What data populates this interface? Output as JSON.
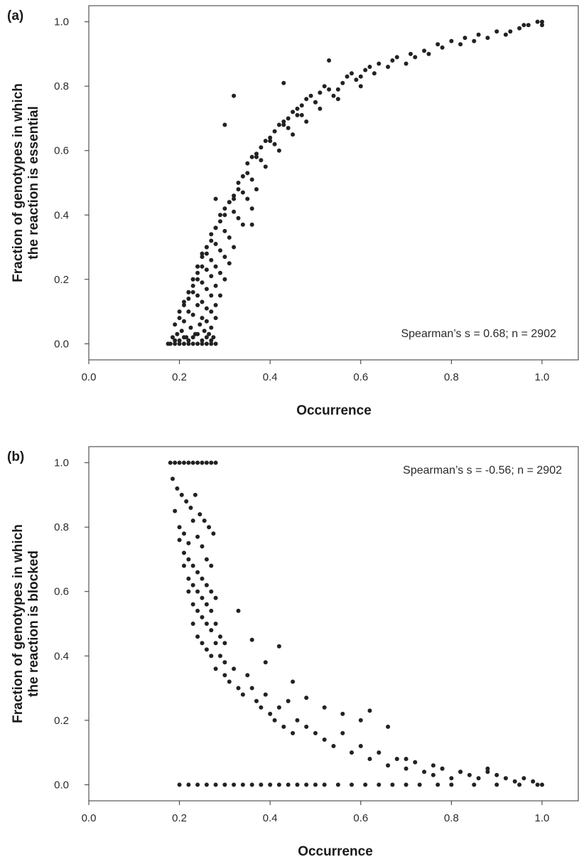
{
  "chart_data": [
    {
      "type": "scatter",
      "panel_label": "(a)",
      "xlabel": "Occurrence",
      "ylabel_lines": [
        "Fraction of genotypes in which",
        "the reaction is essential"
      ],
      "annotation": "Spearman’s s = 0.68; n = 2902",
      "annotation_position": "bottom-right",
      "xlim": [
        0.0,
        1.08
      ],
      "ylim": [
        -0.05,
        1.05
      ],
      "x_ticks": [
        "0.0",
        "0.2",
        "0.4",
        "0.6",
        "0.8",
        "1.0"
      ],
      "y_ticks": [
        "0.0",
        "0.2",
        "0.4",
        "0.6",
        "0.8",
        "1.0"
      ],
      "grid": false,
      "n": 2902,
      "trend": "increasing",
      "point_color": "#222222",
      "series": [
        {
          "x": [
            0.175,
            0.18,
            0.19,
            0.2,
            0.21,
            0.22,
            0.23,
            0.24,
            0.25,
            0.26,
            0.27,
            0.28,
            0.185,
            0.195,
            0.205,
            0.215,
            0.225,
            0.235,
            0.245,
            0.255,
            0.265,
            0.275,
            0.19,
            0.2,
            0.21,
            0.22,
            0.23,
            0.24,
            0.25,
            0.26,
            0.27,
            0.2,
            0.21,
            0.22,
            0.23,
            0.24,
            0.25,
            0.26,
            0.27,
            0.28,
            0.21,
            0.22,
            0.23,
            0.24,
            0.25,
            0.26,
            0.27,
            0.28,
            0.22,
            0.23,
            0.24,
            0.25,
            0.26,
            0.27,
            0.28,
            0.29,
            0.23,
            0.24,
            0.25,
            0.26,
            0.27,
            0.28,
            0.29,
            0.3,
            0.24,
            0.25,
            0.26,
            0.27,
            0.28,
            0.29,
            0.3,
            0.31,
            0.26,
            0.27,
            0.28,
            0.29,
            0.3,
            0.31,
            0.32,
            0.28,
            0.29,
            0.3,
            0.31,
            0.32,
            0.33,
            0.34,
            0.3,
            0.31,
            0.32,
            0.33,
            0.34,
            0.35,
            0.36,
            0.32,
            0.33,
            0.34,
            0.35,
            0.36,
            0.37,
            0.34,
            0.35,
            0.36,
            0.37,
            0.38,
            0.39,
            0.37,
            0.38,
            0.39,
            0.4,
            0.41,
            0.42,
            0.4,
            0.41,
            0.42,
            0.43,
            0.44,
            0.45,
            0.43,
            0.44,
            0.45,
            0.46,
            0.47,
            0.48,
            0.46,
            0.47,
            0.48,
            0.49,
            0.5,
            0.51,
            0.5,
            0.51,
            0.52,
            0.53,
            0.54,
            0.55,
            0.55,
            0.56,
            0.57,
            0.58,
            0.59,
            0.6,
            0.6,
            0.61,
            0.62,
            0.63,
            0.64,
            0.66,
            0.67,
            0.68,
            0.7,
            0.71,
            0.72,
            0.74,
            0.75,
            0.77,
            0.78,
            0.8,
            0.82,
            0.83,
            0.85,
            0.86,
            0.88,
            0.9,
            0.92,
            0.93,
            0.95,
            0.96,
            0.97,
            0.99,
            1.0,
            1.0,
            0.32,
            0.3,
            0.43,
            0.53,
            0.28,
            0.36,
            0.19,
            0.2,
            0.21,
            0.22,
            0.23,
            0.24,
            0.25,
            0.26,
            0.27
          ],
          "y": [
            0.0,
            0.0,
            0.0,
            0.0,
            0.0,
            0.0,
            0.0,
            0.0,
            0.0,
            0.0,
            0.0,
            0.0,
            0.02,
            0.03,
            0.04,
            0.02,
            0.05,
            0.03,
            0.06,
            0.04,
            0.03,
            0.02,
            0.06,
            0.08,
            0.07,
            0.1,
            0.09,
            0.12,
            0.08,
            0.07,
            0.05,
            0.1,
            0.12,
            0.14,
            0.16,
            0.15,
            0.13,
            0.11,
            0.1,
            0.08,
            0.13,
            0.16,
            0.18,
            0.2,
            0.19,
            0.17,
            0.15,
            0.12,
            0.16,
            0.2,
            0.22,
            0.24,
            0.23,
            0.21,
            0.18,
            0.15,
            0.2,
            0.24,
            0.27,
            0.28,
            0.26,
            0.24,
            0.22,
            0.2,
            0.24,
            0.28,
            0.3,
            0.32,
            0.31,
            0.29,
            0.27,
            0.25,
            0.3,
            0.34,
            0.36,
            0.38,
            0.35,
            0.33,
            0.3,
            0.36,
            0.4,
            0.42,
            0.44,
            0.41,
            0.39,
            0.37,
            0.4,
            0.44,
            0.46,
            0.48,
            0.47,
            0.45,
            0.42,
            0.45,
            0.5,
            0.52,
            0.53,
            0.51,
            0.48,
            0.52,
            0.56,
            0.58,
            0.59,
            0.57,
            0.55,
            0.58,
            0.61,
            0.63,
            0.64,
            0.62,
            0.6,
            0.63,
            0.66,
            0.68,
            0.69,
            0.67,
            0.65,
            0.68,
            0.7,
            0.72,
            0.73,
            0.71,
            0.69,
            0.71,
            0.74,
            0.76,
            0.77,
            0.75,
            0.73,
            0.75,
            0.78,
            0.8,
            0.79,
            0.77,
            0.76,
            0.79,
            0.81,
            0.83,
            0.84,
            0.82,
            0.8,
            0.83,
            0.85,
            0.86,
            0.84,
            0.87,
            0.86,
            0.88,
            0.89,
            0.87,
            0.9,
            0.89,
            0.91,
            0.9,
            0.93,
            0.92,
            0.94,
            0.93,
            0.95,
            0.94,
            0.96,
            0.95,
            0.97,
            0.96,
            0.97,
            0.98,
            0.99,
            0.99,
            1.0,
            0.99,
            1.0,
            0.77,
            0.68,
            0.81,
            0.88,
            0.45,
            0.37,
            0.01,
            0.01,
            0.02,
            0.01,
            0.02,
            0.03,
            0.01,
            0.02,
            0.01
          ]
        }
      ]
    },
    {
      "type": "scatter",
      "panel_label": "(b)",
      "xlabel": "Occurrence",
      "ylabel_lines": [
        "Fraction of genotypes in which",
        "the reaction is blocked"
      ],
      "annotation": "Spearman’s s = -0.56; n = 2902",
      "annotation_position": "top-right",
      "xlim": [
        0.0,
        1.08
      ],
      "ylim": [
        -0.05,
        1.05
      ],
      "x_ticks": [
        "0.0",
        "0.2",
        "0.4",
        "0.6",
        "0.8",
        "1.0"
      ],
      "y_ticks": [
        "0.0",
        "0.2",
        "0.4",
        "0.6",
        "0.8",
        "1.0"
      ],
      "grid": false,
      "n": 2902,
      "trend": "decreasing",
      "point_color": "#222222",
      "series": [
        {
          "x": [
            0.18,
            0.19,
            0.2,
            0.21,
            0.22,
            0.23,
            0.24,
            0.25,
            0.26,
            0.27,
            0.28,
            0.185,
            0.195,
            0.205,
            0.215,
            0.225,
            0.235,
            0.245,
            0.255,
            0.265,
            0.275,
            0.19,
            0.2,
            0.21,
            0.22,
            0.23,
            0.24,
            0.25,
            0.26,
            0.27,
            0.2,
            0.21,
            0.22,
            0.23,
            0.24,
            0.25,
            0.26,
            0.27,
            0.28,
            0.21,
            0.22,
            0.23,
            0.24,
            0.25,
            0.26,
            0.27,
            0.28,
            0.29,
            0.22,
            0.23,
            0.24,
            0.25,
            0.26,
            0.27,
            0.28,
            0.29,
            0.3,
            0.23,
            0.24,
            0.25,
            0.26,
            0.27,
            0.28,
            0.3,
            0.31,
            0.32,
            0.33,
            0.34,
            0.35,
            0.36,
            0.37,
            0.38,
            0.39,
            0.4,
            0.41,
            0.42,
            0.43,
            0.44,
            0.45,
            0.46,
            0.48,
            0.5,
            0.52,
            0.54,
            0.56,
            0.58,
            0.6,
            0.62,
            0.64,
            0.66,
            0.68,
            0.7,
            0.72,
            0.74,
            0.76,
            0.78,
            0.8,
            0.82,
            0.84,
            0.86,
            0.88,
            0.9,
            0.92,
            0.94,
            0.96,
            0.98,
            1.0,
            0.2,
            0.22,
            0.24,
            0.26,
            0.28,
            0.3,
            0.32,
            0.34,
            0.36,
            0.38,
            0.4,
            0.42,
            0.44,
            0.46,
            0.48,
            0.5,
            0.52,
            0.55,
            0.58,
            0.61,
            0.64,
            0.67,
            0.7,
            0.73,
            0.77,
            0.8,
            0.85,
            0.9,
            0.95,
            0.99,
            0.3,
            0.33,
            0.36,
            0.39,
            0.42,
            0.45,
            0.48,
            0.52,
            0.56,
            0.6,
            0.62,
            0.66,
            0.7,
            0.76,
            0.78,
            0.82,
            0.88
          ],
          "y": [
            1.0,
            1.0,
            1.0,
            1.0,
            1.0,
            1.0,
            1.0,
            1.0,
            1.0,
            1.0,
            1.0,
            0.95,
            0.92,
            0.9,
            0.88,
            0.86,
            0.9,
            0.84,
            0.82,
            0.8,
            0.78,
            0.85,
            0.8,
            0.78,
            0.75,
            0.82,
            0.77,
            0.74,
            0.7,
            0.68,
            0.76,
            0.72,
            0.7,
            0.68,
            0.66,
            0.64,
            0.62,
            0.6,
            0.58,
            0.68,
            0.64,
            0.62,
            0.6,
            0.58,
            0.56,
            0.54,
            0.5,
            0.46,
            0.6,
            0.56,
            0.54,
            0.52,
            0.5,
            0.48,
            0.44,
            0.4,
            0.38,
            0.5,
            0.46,
            0.44,
            0.42,
            0.4,
            0.36,
            0.34,
            0.32,
            0.36,
            0.3,
            0.28,
            0.34,
            0.3,
            0.26,
            0.24,
            0.28,
            0.22,
            0.2,
            0.24,
            0.18,
            0.26,
            0.16,
            0.2,
            0.18,
            0.16,
            0.14,
            0.12,
            0.16,
            0.1,
            0.12,
            0.08,
            0.1,
            0.06,
            0.08,
            0.05,
            0.07,
            0.04,
            0.03,
            0.05,
            0.02,
            0.04,
            0.03,
            0.02,
            0.04,
            0.03,
            0.02,
            0.01,
            0.02,
            0.01,
            0.0,
            0.0,
            0.0,
            0.0,
            0.0,
            0.0,
            0.0,
            0.0,
            0.0,
            0.0,
            0.0,
            0.0,
            0.0,
            0.0,
            0.0,
            0.0,
            0.0,
            0.0,
            0.0,
            0.0,
            0.0,
            0.0,
            0.0,
            0.0,
            0.0,
            0.0,
            0.0,
            0.0,
            0.0,
            0.0,
            0.0,
            0.44,
            0.54,
            0.45,
            0.38,
            0.43,
            0.32,
            0.27,
            0.24,
            0.22,
            0.2,
            0.23,
            0.18,
            0.08,
            0.06,
            0.05,
            0.04,
            0.05
          ]
        }
      ]
    }
  ]
}
